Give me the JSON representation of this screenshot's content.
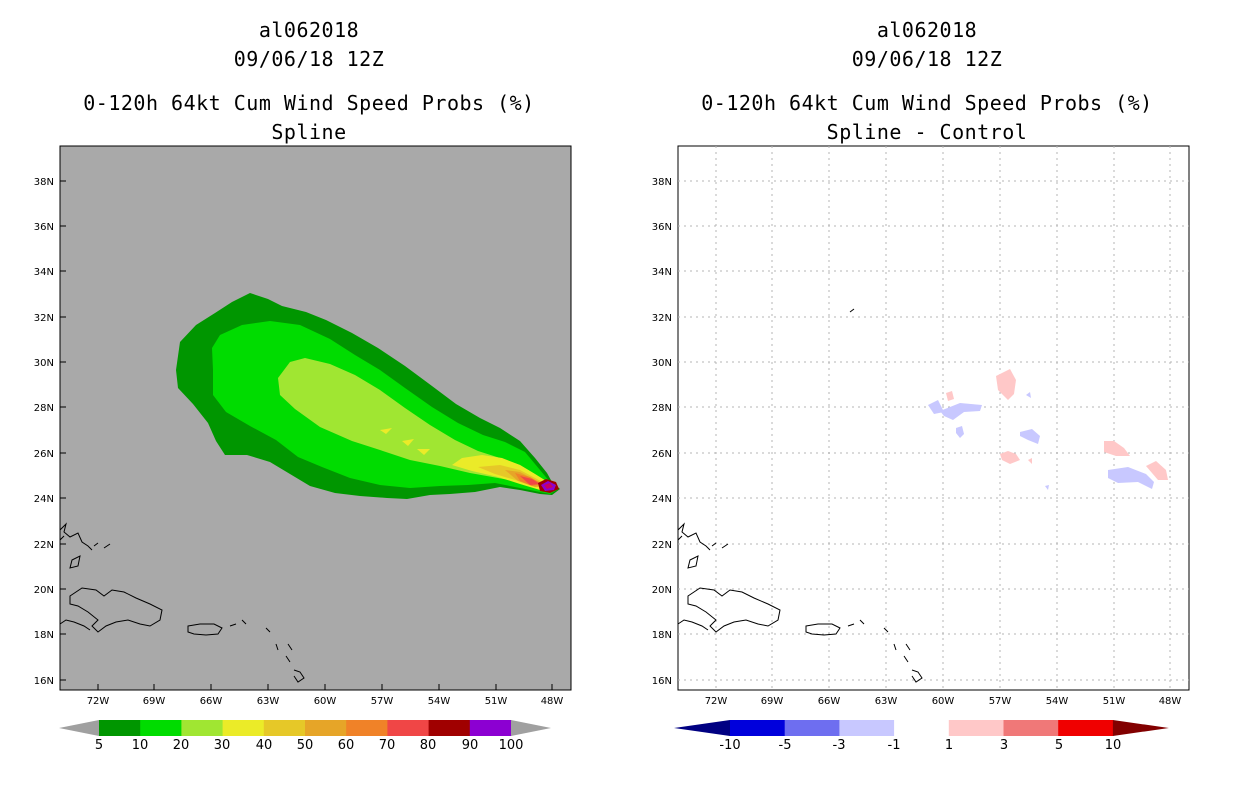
{
  "left": {
    "title_storm": "al062018",
    "title_date": "09/06/18 12Z",
    "title_product": "0-120h 64kt Cum Wind Speed Probs (%)",
    "title_method": "Spline",
    "lat_labels": [
      "38N",
      "36N",
      "34N",
      "32N",
      "30N",
      "28N",
      "26N",
      "24N",
      "22N",
      "20N",
      "18N",
      "16N"
    ],
    "lon_labels": [
      "72W",
      "69W",
      "66W",
      "63W",
      "60W",
      "57W",
      "54W",
      "51W",
      "48W"
    ],
    "colorbar": {
      "labels": [
        "5",
        "10",
        "20",
        "30",
        "40",
        "50",
        "60",
        "70",
        "80",
        "90",
        "100"
      ],
      "colors": [
        "#009600",
        "#00dc00",
        "#a0e632",
        "#ebeb28",
        "#e6c828",
        "#e6a528",
        "#f08228",
        "#f04646",
        "#a00000",
        "#8c00d2"
      ],
      "under_color": "#a0a0a0",
      "over_color": "#a0a0a0"
    },
    "background_color": "#a9a9a9"
  },
  "right": {
    "title_storm": "al062018",
    "title_date": "09/06/18 12Z",
    "title_product": "0-120h 64kt Cum Wind Speed Probs (%)",
    "title_method": "Spline - Control",
    "lat_labels": [
      "38N",
      "36N",
      "34N",
      "32N",
      "30N",
      "28N",
      "26N",
      "24N",
      "22N",
      "20N",
      "18N",
      "16N"
    ],
    "lon_labels": [
      "72W",
      "69W",
      "66W",
      "63W",
      "60W",
      "57W",
      "54W",
      "51W",
      "48W"
    ],
    "colorbar": {
      "labels": [
        "-10",
        "-5",
        "-3",
        "-1",
        "1",
        "3",
        "5",
        "10"
      ],
      "colors": [
        "#0000dc",
        "#6e6ef0",
        "#c8c8ff",
        "#ffffff",
        "#ffc8c8",
        "#f07878",
        "#f00000"
      ],
      "under_color": "#000082",
      "over_color": "#820000"
    },
    "background_color": "#ffffff"
  }
}
